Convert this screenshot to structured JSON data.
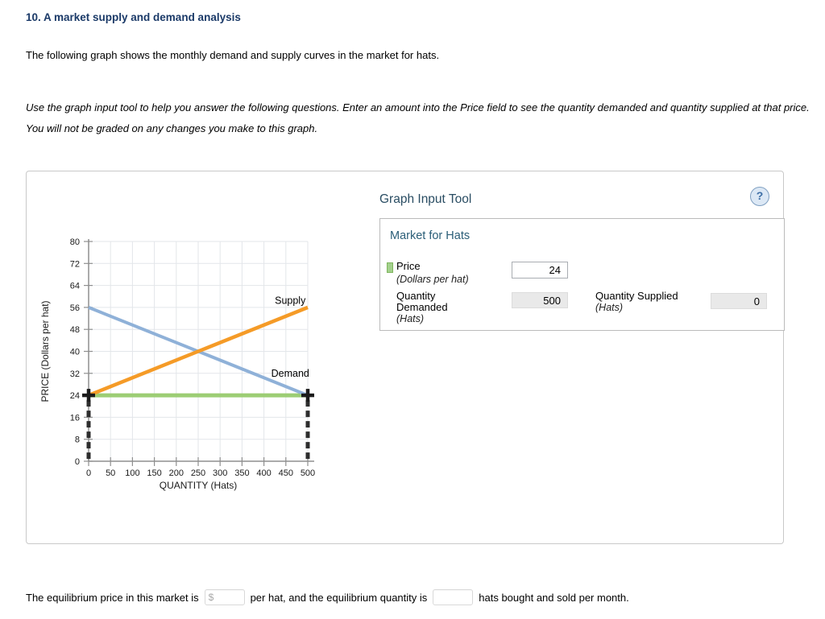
{
  "header": {
    "title": "10. A market supply and demand analysis",
    "intro": "The following graph shows the monthly demand and supply curves in the market for hats.",
    "instructions": "Use the graph input tool to help you answer the following questions. Enter an amount into the Price field to see the quantity demanded and quantity supplied at that price. You will not be graded on any changes you make to this graph."
  },
  "graph_input_tool": {
    "title": "Graph Input Tool",
    "help_label": "?",
    "market_title": "Market for Hats",
    "fields": {
      "price": {
        "label": "Price",
        "unit": "(Dollars per hat)",
        "value": "24"
      },
      "quantity_demanded": {
        "label": "Quantity Demanded",
        "unit": "(Hats)",
        "value": "500"
      },
      "quantity_supplied": {
        "label": "Quantity Supplied",
        "unit": "(Hats)",
        "value": "0"
      }
    }
  },
  "equilibrium_question": {
    "text_before_price": "The equilibrium price in this market is",
    "price_prefix": "$",
    "price_value": "",
    "text_between": "per hat, and the equilibrium quantity is",
    "quantity_value": "",
    "text_after": "hats bought and sold per month."
  },
  "chart_data": {
    "type": "line",
    "title": "",
    "xlabel": "QUANTITY (Hats)",
    "ylabel": "PRICE (Dollars per hat)",
    "xlim": [
      0,
      500
    ],
    "ylim": [
      0,
      80
    ],
    "x_ticks": [
      0,
      50,
      100,
      150,
      200,
      250,
      300,
      350,
      400,
      450,
      500
    ],
    "y_ticks": [
      0,
      8,
      16,
      24,
      32,
      40,
      48,
      56,
      64,
      72,
      80
    ],
    "grid": true,
    "series": [
      {
        "name": "Price",
        "data_name": "price-line",
        "color": "#9ccd74",
        "width": 5,
        "points": [
          [
            0,
            24
          ],
          [
            500,
            24
          ]
        ],
        "interactable": true
      },
      {
        "name": "Demand",
        "data_name": "demand-curve",
        "color": "#8fb1d8",
        "width": 4,
        "points": [
          [
            0,
            56
          ],
          [
            500,
            24
          ]
        ],
        "label_pos": [
          460,
          32
        ]
      },
      {
        "name": "Supply",
        "data_name": "supply-curve",
        "color": "#f59b27",
        "width": 4.5,
        "points": [
          [
            0,
            24
          ],
          [
            500,
            56
          ]
        ],
        "label_pos": [
          460,
          58.5
        ]
      }
    ],
    "markers": [
      {
        "x": 0,
        "y": 24
      },
      {
        "x": 500,
        "y": 24
      }
    ],
    "dashed_drop_lines": [
      {
        "x": 0,
        "from_y": 24,
        "to_y": 0
      },
      {
        "x": 500,
        "from_y": 24,
        "to_y": 0
      }
    ],
    "colors": {
      "grid": "#e3e6ea",
      "axis": "#8f8f8f",
      "dashed": "#2d2d2d",
      "marker": "#1b1b1b"
    }
  }
}
